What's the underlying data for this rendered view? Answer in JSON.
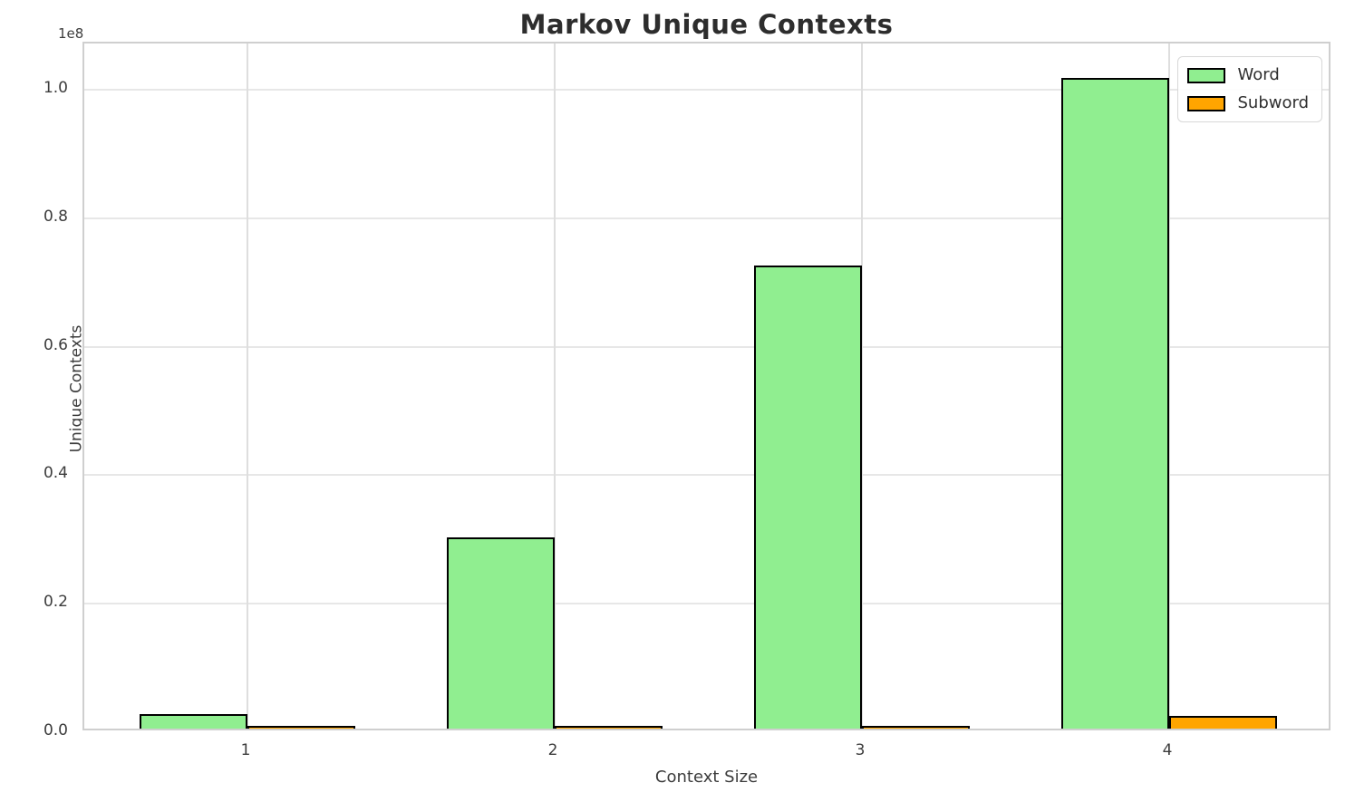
{
  "chart_data": {
    "type": "bar",
    "title": "Markov Unique Contexts",
    "xlabel": "Context Size",
    "ylabel": "Unique Contexts",
    "offset_text": "1e8",
    "categories": [
      "1",
      "2",
      "3",
      "4"
    ],
    "series": [
      {
        "name": "Word",
        "color": "#90EE90",
        "values": [
          2200000,
          29750000,
          72050000,
          101300000
        ]
      },
      {
        "name": "Subword",
        "color": "#FFA500",
        "values": [
          30000,
          140000,
          450000,
          1980000
        ]
      }
    ],
    "bar_edge_color": "#000000",
    "ylim": [
      0,
      107000000
    ],
    "yticks": [
      0,
      20000000,
      40000000,
      60000000,
      80000000,
      100000000
    ],
    "ytick_labels": [
      "0.0",
      "0.2",
      "0.4",
      "0.6",
      "0.8",
      "1.0"
    ],
    "grid": true,
    "legend_position": "upper right"
  },
  "layout_colors": {
    "grid_h": "#e7e7e7",
    "grid_v": "#dedede",
    "spine": "#cfcfcf",
    "text": "#3c3c3c",
    "title_text": "#2d2d2d"
  }
}
